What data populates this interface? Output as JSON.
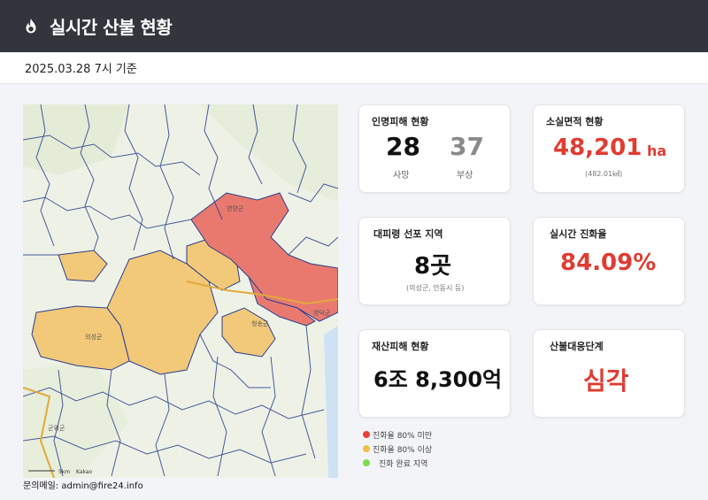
{
  "header": {
    "title": "실시간 산불 현황"
  },
  "subbar": {
    "date": "2025.03.28 7시 기준"
  },
  "cards": {
    "casualty": {
      "label": "인명피해 현황",
      "dead_value": "28",
      "dead_label": "사망",
      "injured_value": "37",
      "injured_label": "부상"
    },
    "area": {
      "label": "소실면적 현황",
      "value": "48,201",
      "unit": "ha",
      "sub": "(482.01㎢)"
    },
    "evac": {
      "label": "대피령 선포 지역",
      "value": "8곳",
      "sub": "(의성군, 안동시 등)"
    },
    "contain": {
      "label": "실시간 진화율",
      "value": "84.09%"
    },
    "property": {
      "label": "재산피해 현황",
      "value": "6조 8,300억"
    },
    "level": {
      "label": "산불대응단계",
      "value": "심각"
    }
  },
  "legend": [
    {
      "label": "진화율 80% 미만",
      "color": "#e8433a"
    },
    {
      "label": "진화율 80% 이상",
      "color": "#f0c040"
    },
    {
      "label": "진화 완료 지역",
      "color": "#7cdc4a"
    }
  ],
  "map": {
    "place_labels": [
      "영양군",
      "의성군",
      "청송군",
      "영덕군",
      "군위군"
    ],
    "attribution": "Kakao",
    "scale": "5km",
    "contact": "문의메일: admin@fire24.info"
  },
  "colors": {
    "header_bg": "#33353d",
    "accent_red": "#e03c31",
    "muted_gray": "#8a8a8a",
    "zone_red": "#e9796f",
    "zone_yellow": "#f2c879"
  }
}
